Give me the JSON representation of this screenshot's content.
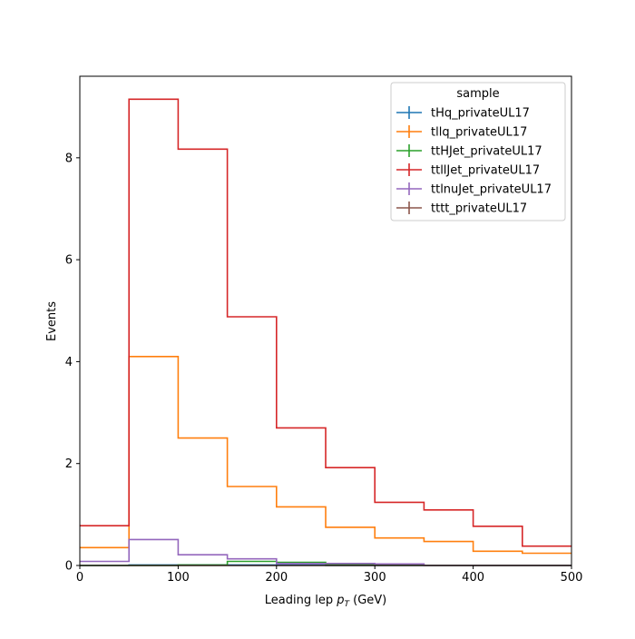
{
  "chart_data": {
    "type": "line",
    "style": "step-histogram",
    "xlabel": "Leading lep p_T (GeV)",
    "xlabel_parts": {
      "prefix": "Leading lep ",
      "var": "p",
      "sub": "T",
      "suffix": " (GeV)"
    },
    "ylabel": "Events",
    "xlim": [
      0,
      500
    ],
    "ylim": [
      0,
      9.6
    ],
    "xticks": [
      0,
      100,
      200,
      300,
      400,
      500
    ],
    "yticks": [
      0,
      2,
      4,
      6,
      8
    ],
    "grid": false,
    "legend": {
      "title": "sample",
      "placement": "top-right"
    },
    "bin_edges": [
      0,
      50,
      100,
      150,
      200,
      250,
      300,
      350,
      400,
      450,
      500
    ],
    "series": [
      {
        "name": "tHq_privateUL17",
        "color": "#1f77b4",
        "values": [
          0.0,
          0.01,
          0.01,
          0.01,
          0.01,
          0.0,
          0.0,
          0.0,
          0.0,
          0.0
        ]
      },
      {
        "name": "tllq_privateUL17",
        "color": "#ff7f0e",
        "values": [
          0.35,
          4.1,
          2.5,
          1.55,
          1.15,
          0.75,
          0.54,
          0.47,
          0.28,
          0.24
        ]
      },
      {
        "name": "ttHJet_privateUL17",
        "color": "#2ca02c",
        "values": [
          0.0,
          0.0,
          0.01,
          0.08,
          0.06,
          0.02,
          0.01,
          0.0,
          0.0,
          0.0
        ]
      },
      {
        "name": "ttllJet_privateUL17",
        "color": "#d62728",
        "values": [
          0.78,
          9.15,
          8.17,
          4.88,
          2.7,
          1.92,
          1.24,
          1.09,
          0.77,
          0.38
        ]
      },
      {
        "name": "ttlnuJet_privateUL17",
        "color": "#9467bd",
        "values": [
          0.08,
          0.51,
          0.21,
          0.13,
          0.04,
          0.04,
          0.03,
          0.0,
          0.0,
          0.0
        ]
      },
      {
        "name": "tttt_privateUL17",
        "color": "#8c564b",
        "values": [
          0.0,
          0.0,
          0.0,
          0.0,
          0.0,
          0.0,
          0.0,
          0.0,
          0.0,
          0.0
        ]
      }
    ]
  }
}
